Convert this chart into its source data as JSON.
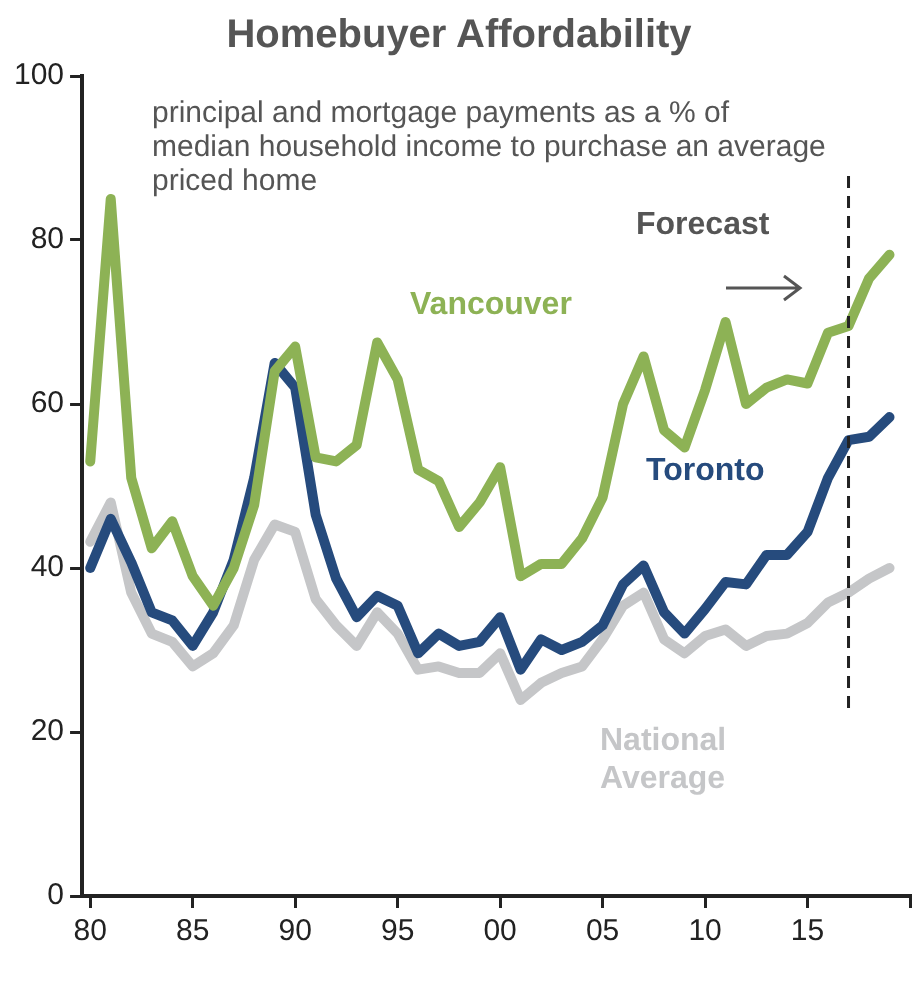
{
  "chart_data": {
    "type": "line",
    "title": "Homebuyer Affordability",
    "subtitle": "principal and mortgage payments as a % of median household income to purchase an average priced home",
    "x": [
      1980,
      1981,
      1982,
      1983,
      1984,
      1985,
      1986,
      1987,
      1988,
      1989,
      1990,
      1991,
      1992,
      1993,
      1994,
      1995,
      1996,
      1997,
      1998,
      1999,
      2000,
      2001,
      2002,
      2003,
      2004,
      2005,
      2006,
      2007,
      2008,
      2009,
      2010,
      2011,
      2012,
      2013,
      2014,
      2015,
      2016,
      2017,
      2018,
      2019
    ],
    "series": [
      {
        "name": "Vancouver",
        "color": "#8db255",
        "values": [
          53,
          85,
          51,
          42.4,
          45.7,
          39,
          35.4,
          40,
          47.7,
          64,
          67,
          53.5,
          53,
          55,
          67.5,
          63,
          52,
          50.6,
          45,
          48,
          52.3,
          39,
          40.5,
          40.5,
          43.6,
          48.6,
          60,
          65.8,
          56.8,
          54.7,
          61.7,
          70,
          60,
          62,
          63,
          62.5,
          68.7,
          69.5,
          75.3,
          78.2
        ]
      },
      {
        "name": "Toronto",
        "color": "#264b7d",
        "values": [
          40,
          46,
          40.7,
          34.6,
          33.6,
          30.5,
          34.6,
          41,
          51,
          65,
          62,
          46.5,
          38.7,
          34,
          36.6,
          35.4,
          29.6,
          32,
          30.5,
          31,
          34,
          27.6,
          31.3,
          30,
          31,
          33,
          38,
          40.3,
          34.6,
          32,
          35,
          38.3,
          38,
          41.6,
          41.6,
          44.4,
          51,
          55.6,
          56,
          58.4
        ]
      },
      {
        "name": "National Average",
        "color": "#c5c6c8",
        "values": [
          43.2,
          48,
          37,
          32,
          31,
          28,
          29.6,
          33,
          41,
          45.3,
          44.4,
          36.2,
          33,
          30.5,
          34.6,
          32,
          27.6,
          28,
          27.2,
          27.2,
          29.6,
          23.9,
          26,
          27.2,
          28,
          31.3,
          35.4,
          37,
          31.3,
          29.6,
          31.7,
          32.5,
          30.5,
          31.7,
          32,
          33.3,
          35.8,
          37,
          38.7,
          40
        ]
      }
    ],
    "xlim": [
      1979.6,
      2020
    ],
    "xticks": [
      {
        "value": 1980,
        "label": "80"
      },
      {
        "value": 1985,
        "label": "85"
      },
      {
        "value": 1990,
        "label": "90"
      },
      {
        "value": 1995,
        "label": "95"
      },
      {
        "value": 2000,
        "label": "00"
      },
      {
        "value": 2005,
        "label": "05"
      },
      {
        "value": 2010,
        "label": "10"
      },
      {
        "value": 2015,
        "label": "15"
      },
      {
        "value": 2020,
        "label": null
      }
    ],
    "ylim": [
      0,
      100
    ],
    "yticks": [
      0,
      20,
      40,
      60,
      80,
      100
    ],
    "ref_lines": [
      {
        "axis": "x",
        "value": 2017,
        "color": "#222222",
        "line_style": "dashed"
      }
    ],
    "annotations": [
      "Forecast"
    ],
    "grid": false,
    "legend": false,
    "marker": "none",
    "line_style": "solid"
  }
}
